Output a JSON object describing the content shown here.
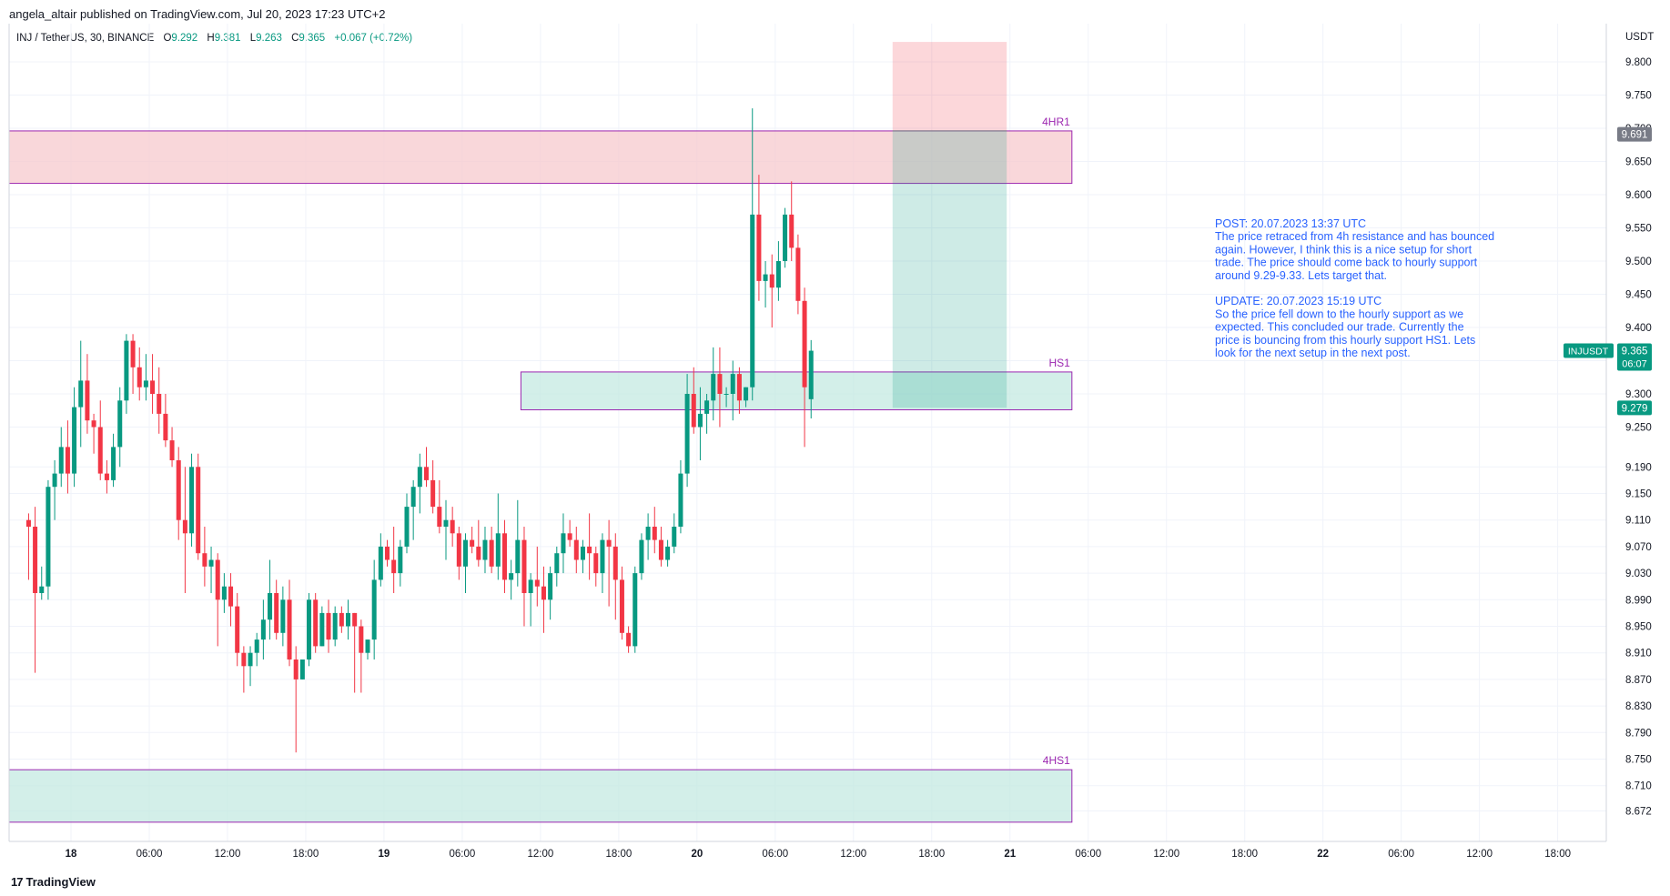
{
  "publish": {
    "author": "angela_altair",
    "text": "angela_altair published on TradingView.com, Jul 20, 2023 17:23 UTC+2"
  },
  "symbol": {
    "title": "INJ / TetherUS, 30, BINANCE",
    "o_label": "O",
    "o": "9.292",
    "h_label": "H",
    "h": "9.381",
    "l_label": "L",
    "l": "9.263",
    "c_label": "C",
    "c": "9.365",
    "change": "+0.067 (+0.72%)"
  },
  "footer": {
    "logo_text": "TradingView",
    "logo_mark": "17"
  },
  "colors": {
    "up": "#089981",
    "down": "#f23645",
    "zone_red": "#f7c9ce",
    "zone_green": "#c4e9e1",
    "zone_border": "#9c27b0",
    "annotation": "#2962ff",
    "grid": "#f0f3fa"
  },
  "chart_data": {
    "type": "candlestick",
    "symbol": "INJUSDT",
    "interval": "30",
    "ylim": [
      8.655,
      9.855
    ],
    "currency": "USDT",
    "y_ticks": [
      "9.800",
      "9.750",
      "9.700",
      "9.650",
      "9.600",
      "9.550",
      "9.500",
      "9.450",
      "9.400",
      "9.350",
      "9.300",
      "9.250",
      "9.190",
      "9.150",
      "9.110",
      "9.070",
      "9.030",
      "8.990",
      "8.950",
      "8.910",
      "8.870",
      "8.830",
      "8.790",
      "8.750",
      "8.710",
      "8.672"
    ],
    "x_ticks": [
      "18",
      "06:00",
      "12:00",
      "18:00",
      "19",
      "06:00",
      "12:00",
      "18:00",
      "20",
      "06:00",
      "12:00",
      "18:00",
      "21",
      "06:00",
      "12:00",
      "18:00",
      "22",
      "06:00",
      "12:00",
      "18:00"
    ],
    "x_start": "2023-07-17 20:30",
    "bar_minutes": 30,
    "candles": [
      [
        9.11,
        9.12,
        9.02,
        9.1
      ],
      [
        9.1,
        9.13,
        8.88,
        9.0
      ],
      [
        9.0,
        9.04,
        8.99,
        9.01
      ],
      [
        9.01,
        9.17,
        8.99,
        9.16
      ],
      [
        9.16,
        9.2,
        9.11,
        9.18
      ],
      [
        9.18,
        9.25,
        9.16,
        9.22
      ],
      [
        9.22,
        9.26,
        9.15,
        9.18
      ],
      [
        9.18,
        9.31,
        9.16,
        9.28
      ],
      [
        9.28,
        9.38,
        9.22,
        9.32
      ],
      [
        9.32,
        9.36,
        9.24,
        9.26
      ],
      [
        9.26,
        9.27,
        9.21,
        9.25
      ],
      [
        9.25,
        9.29,
        9.17,
        9.18
      ],
      [
        9.18,
        9.2,
        9.15,
        9.17
      ],
      [
        9.17,
        9.24,
        9.16,
        9.22
      ],
      [
        9.22,
        9.31,
        9.19,
        9.29
      ],
      [
        9.29,
        9.39,
        9.27,
        9.38
      ],
      [
        9.38,
        9.39,
        9.3,
        9.34
      ],
      [
        9.34,
        9.37,
        9.29,
        9.31
      ],
      [
        9.31,
        9.36,
        9.29,
        9.32
      ],
      [
        9.32,
        9.36,
        9.27,
        9.3
      ],
      [
        9.3,
        9.34,
        9.24,
        9.27
      ],
      [
        9.27,
        9.3,
        9.22,
        9.23
      ],
      [
        9.23,
        9.25,
        9.19,
        9.2
      ],
      [
        9.2,
        9.22,
        9.08,
        9.11
      ],
      [
        9.11,
        9.19,
        9.0,
        9.09
      ],
      [
        9.09,
        9.21,
        9.07,
        9.19
      ],
      [
        9.19,
        9.21,
        9.05,
        9.06
      ],
      [
        9.06,
        9.1,
        9.01,
        9.04
      ],
      [
        9.04,
        9.07,
        9.0,
        9.05
      ],
      [
        9.05,
        9.06,
        8.92,
        8.99
      ],
      [
        8.99,
        9.03,
        8.97,
        9.01
      ],
      [
        9.01,
        9.03,
        8.95,
        8.98
      ],
      [
        8.98,
        9.0,
        8.89,
        8.91
      ],
      [
        8.91,
        8.92,
        8.85,
        8.89
      ],
      [
        8.89,
        8.92,
        8.86,
        8.91
      ],
      [
        8.91,
        8.94,
        8.89,
        8.93
      ],
      [
        8.93,
        8.99,
        8.9,
        8.96
      ],
      [
        8.96,
        9.05,
        8.93,
        9.0
      ],
      [
        9.0,
        9.02,
        8.93,
        8.94
      ],
      [
        8.94,
        9.01,
        8.92,
        8.99
      ],
      [
        8.99,
        9.02,
        8.89,
        8.9
      ],
      [
        8.9,
        8.92,
        8.76,
        8.87
      ],
      [
        8.87,
        8.9,
        8.87,
        8.9
      ],
      [
        8.9,
        9.0,
        8.89,
        8.99
      ],
      [
        8.99,
        9.0,
        8.91,
        8.92
      ],
      [
        8.92,
        8.98,
        8.92,
        8.97
      ],
      [
        8.97,
        8.99,
        8.91,
        8.93
      ],
      [
        8.93,
        8.98,
        8.92,
        8.97
      ],
      [
        8.97,
        8.98,
        8.94,
        8.95
      ],
      [
        8.95,
        8.99,
        8.93,
        8.97
      ],
      [
        8.97,
        8.97,
        8.85,
        8.95
      ],
      [
        8.95,
        8.96,
        8.85,
        8.91
      ],
      [
        8.91,
        8.93,
        8.9,
        8.93
      ],
      [
        8.93,
        9.05,
        8.9,
        9.02
      ],
      [
        9.02,
        9.09,
        9.01,
        9.07
      ],
      [
        9.07,
        9.08,
        9.04,
        9.05
      ],
      [
        9.05,
        9.1,
        9.0,
        9.03
      ],
      [
        9.03,
        9.08,
        9.01,
        9.07
      ],
      [
        9.07,
        9.15,
        9.06,
        9.13
      ],
      [
        9.13,
        9.17,
        9.08,
        9.16
      ],
      [
        9.16,
        9.21,
        9.12,
        9.19
      ],
      [
        9.19,
        9.22,
        9.16,
        9.17
      ],
      [
        9.17,
        9.2,
        9.12,
        9.13
      ],
      [
        9.13,
        9.17,
        9.09,
        9.1
      ],
      [
        9.1,
        9.14,
        9.05,
        9.11
      ],
      [
        9.11,
        9.13,
        9.07,
        9.09
      ],
      [
        9.09,
        9.1,
        9.02,
        9.04
      ],
      [
        9.04,
        9.09,
        9.0,
        9.08
      ],
      [
        9.08,
        9.1,
        9.06,
        9.07
      ],
      [
        9.07,
        9.11,
        9.04,
        9.05
      ],
      [
        9.05,
        9.1,
        9.03,
        9.08
      ],
      [
        9.08,
        9.1,
        9.03,
        9.04
      ],
      [
        9.04,
        9.15,
        9.02,
        9.09
      ],
      [
        9.09,
        9.11,
        9.0,
        9.02
      ],
      [
        9.02,
        9.05,
        8.99,
        9.03
      ],
      [
        9.03,
        9.14,
        9.01,
        9.08
      ],
      [
        9.08,
        9.1,
        8.95,
        9.0
      ],
      [
        9.0,
        9.03,
        8.95,
        9.02
      ],
      [
        9.02,
        9.07,
        8.98,
        9.01
      ],
      [
        9.01,
        9.04,
        8.94,
        8.99
      ],
      [
        8.99,
        9.04,
        8.96,
        9.03
      ],
      [
        9.03,
        9.07,
        9.01,
        9.06
      ],
      [
        9.06,
        9.12,
        9.03,
        9.09
      ],
      [
        9.09,
        9.11,
        9.07,
        9.08
      ],
      [
        9.08,
        9.1,
        9.03,
        9.05
      ],
      [
        9.05,
        9.08,
        9.03,
        9.07
      ],
      [
        9.07,
        9.12,
        9.02,
        9.06
      ],
      [
        9.06,
        9.07,
        9.01,
        9.03
      ],
      [
        9.03,
        9.09,
        9.0,
        9.08
      ],
      [
        9.08,
        9.11,
        8.98,
        9.07
      ],
      [
        9.07,
        9.09,
        8.96,
        9.02
      ],
      [
        9.02,
        9.04,
        8.93,
        8.94
      ],
      [
        8.94,
        8.95,
        8.91,
        8.92
      ],
      [
        8.92,
        9.04,
        8.91,
        9.03
      ],
      [
        9.03,
        9.09,
        9.02,
        9.08
      ],
      [
        9.08,
        9.12,
        9.05,
        9.1
      ],
      [
        9.1,
        9.13,
        9.06,
        9.08
      ],
      [
        9.08,
        9.1,
        9.04,
        9.05
      ],
      [
        9.05,
        9.08,
        9.04,
        9.07
      ],
      [
        9.07,
        9.12,
        9.06,
        9.1
      ],
      [
        9.1,
        9.2,
        9.09,
        9.18
      ],
      [
        9.18,
        9.33,
        9.16,
        9.3
      ],
      [
        9.3,
        9.34,
        9.24,
        9.25
      ],
      [
        9.25,
        9.31,
        9.2,
        9.27
      ],
      [
        9.27,
        9.3,
        9.24,
        9.29
      ],
      [
        9.29,
        9.37,
        9.26,
        9.33
      ],
      [
        9.33,
        9.37,
        9.25,
        9.3
      ],
      [
        9.3,
        9.31,
        9.28,
        9.3
      ],
      [
        9.3,
        9.35,
        9.26,
        9.33
      ],
      [
        9.33,
        9.34,
        9.27,
        9.29
      ],
      [
        9.29,
        9.31,
        9.28,
        9.31
      ],
      [
        9.31,
        9.73,
        9.29,
        9.57
      ],
      [
        9.57,
        9.63,
        9.44,
        9.47
      ],
      [
        9.47,
        9.5,
        9.43,
        9.48
      ],
      [
        9.48,
        9.51,
        9.4,
        9.46
      ],
      [
        9.46,
        9.53,
        9.44,
        9.5
      ],
      [
        9.5,
        9.58,
        9.49,
        9.57
      ],
      [
        9.57,
        9.62,
        9.5,
        9.52
      ],
      [
        9.52,
        9.54,
        9.42,
        9.44
      ],
      [
        9.44,
        9.46,
        9.22,
        9.31
      ],
      [
        9.292,
        9.381,
        9.263,
        9.365
      ]
    ],
    "zones": [
      {
        "label": "4HR1",
        "top": 9.696,
        "bottom": 9.617,
        "color": "red"
      },
      {
        "label": "HS1",
        "top": 9.333,
        "bottom": 9.276,
        "color": "green"
      },
      {
        "label": "4HS1",
        "top": 8.734,
        "bottom": 8.655,
        "color": "green"
      }
    ],
    "short_position": {
      "stop_top": 9.83,
      "entry": 9.696,
      "target": 9.279
    },
    "price_labels": [
      {
        "text": "9.691",
        "value": 9.691,
        "kind": "gray"
      },
      {
        "symbol": "INJUSDT",
        "text": "9.365",
        "timer": "06:07",
        "value": 9.365,
        "kind": "green"
      },
      {
        "text": "9.279",
        "value": 9.279,
        "kind": "green"
      }
    ],
    "annotation": [
      "POST: 20.07.2023 13:37 UTC",
      "The price retraced from 4h resistance and has bounced",
      "again. However, I think this is a nice setup for short",
      "trade. The price should come back to hourly support",
      "around 9.29-9.33. Lets target that.",
      "",
      "UPDATE: 20.07.2023 15:19 UTC",
      "So the price fell down to the hourly support as we",
      "expected. This concluded our trade. Currently the",
      "price is bouncing from this hourly support HS1. Lets",
      "look for the next setup in the next post."
    ]
  }
}
